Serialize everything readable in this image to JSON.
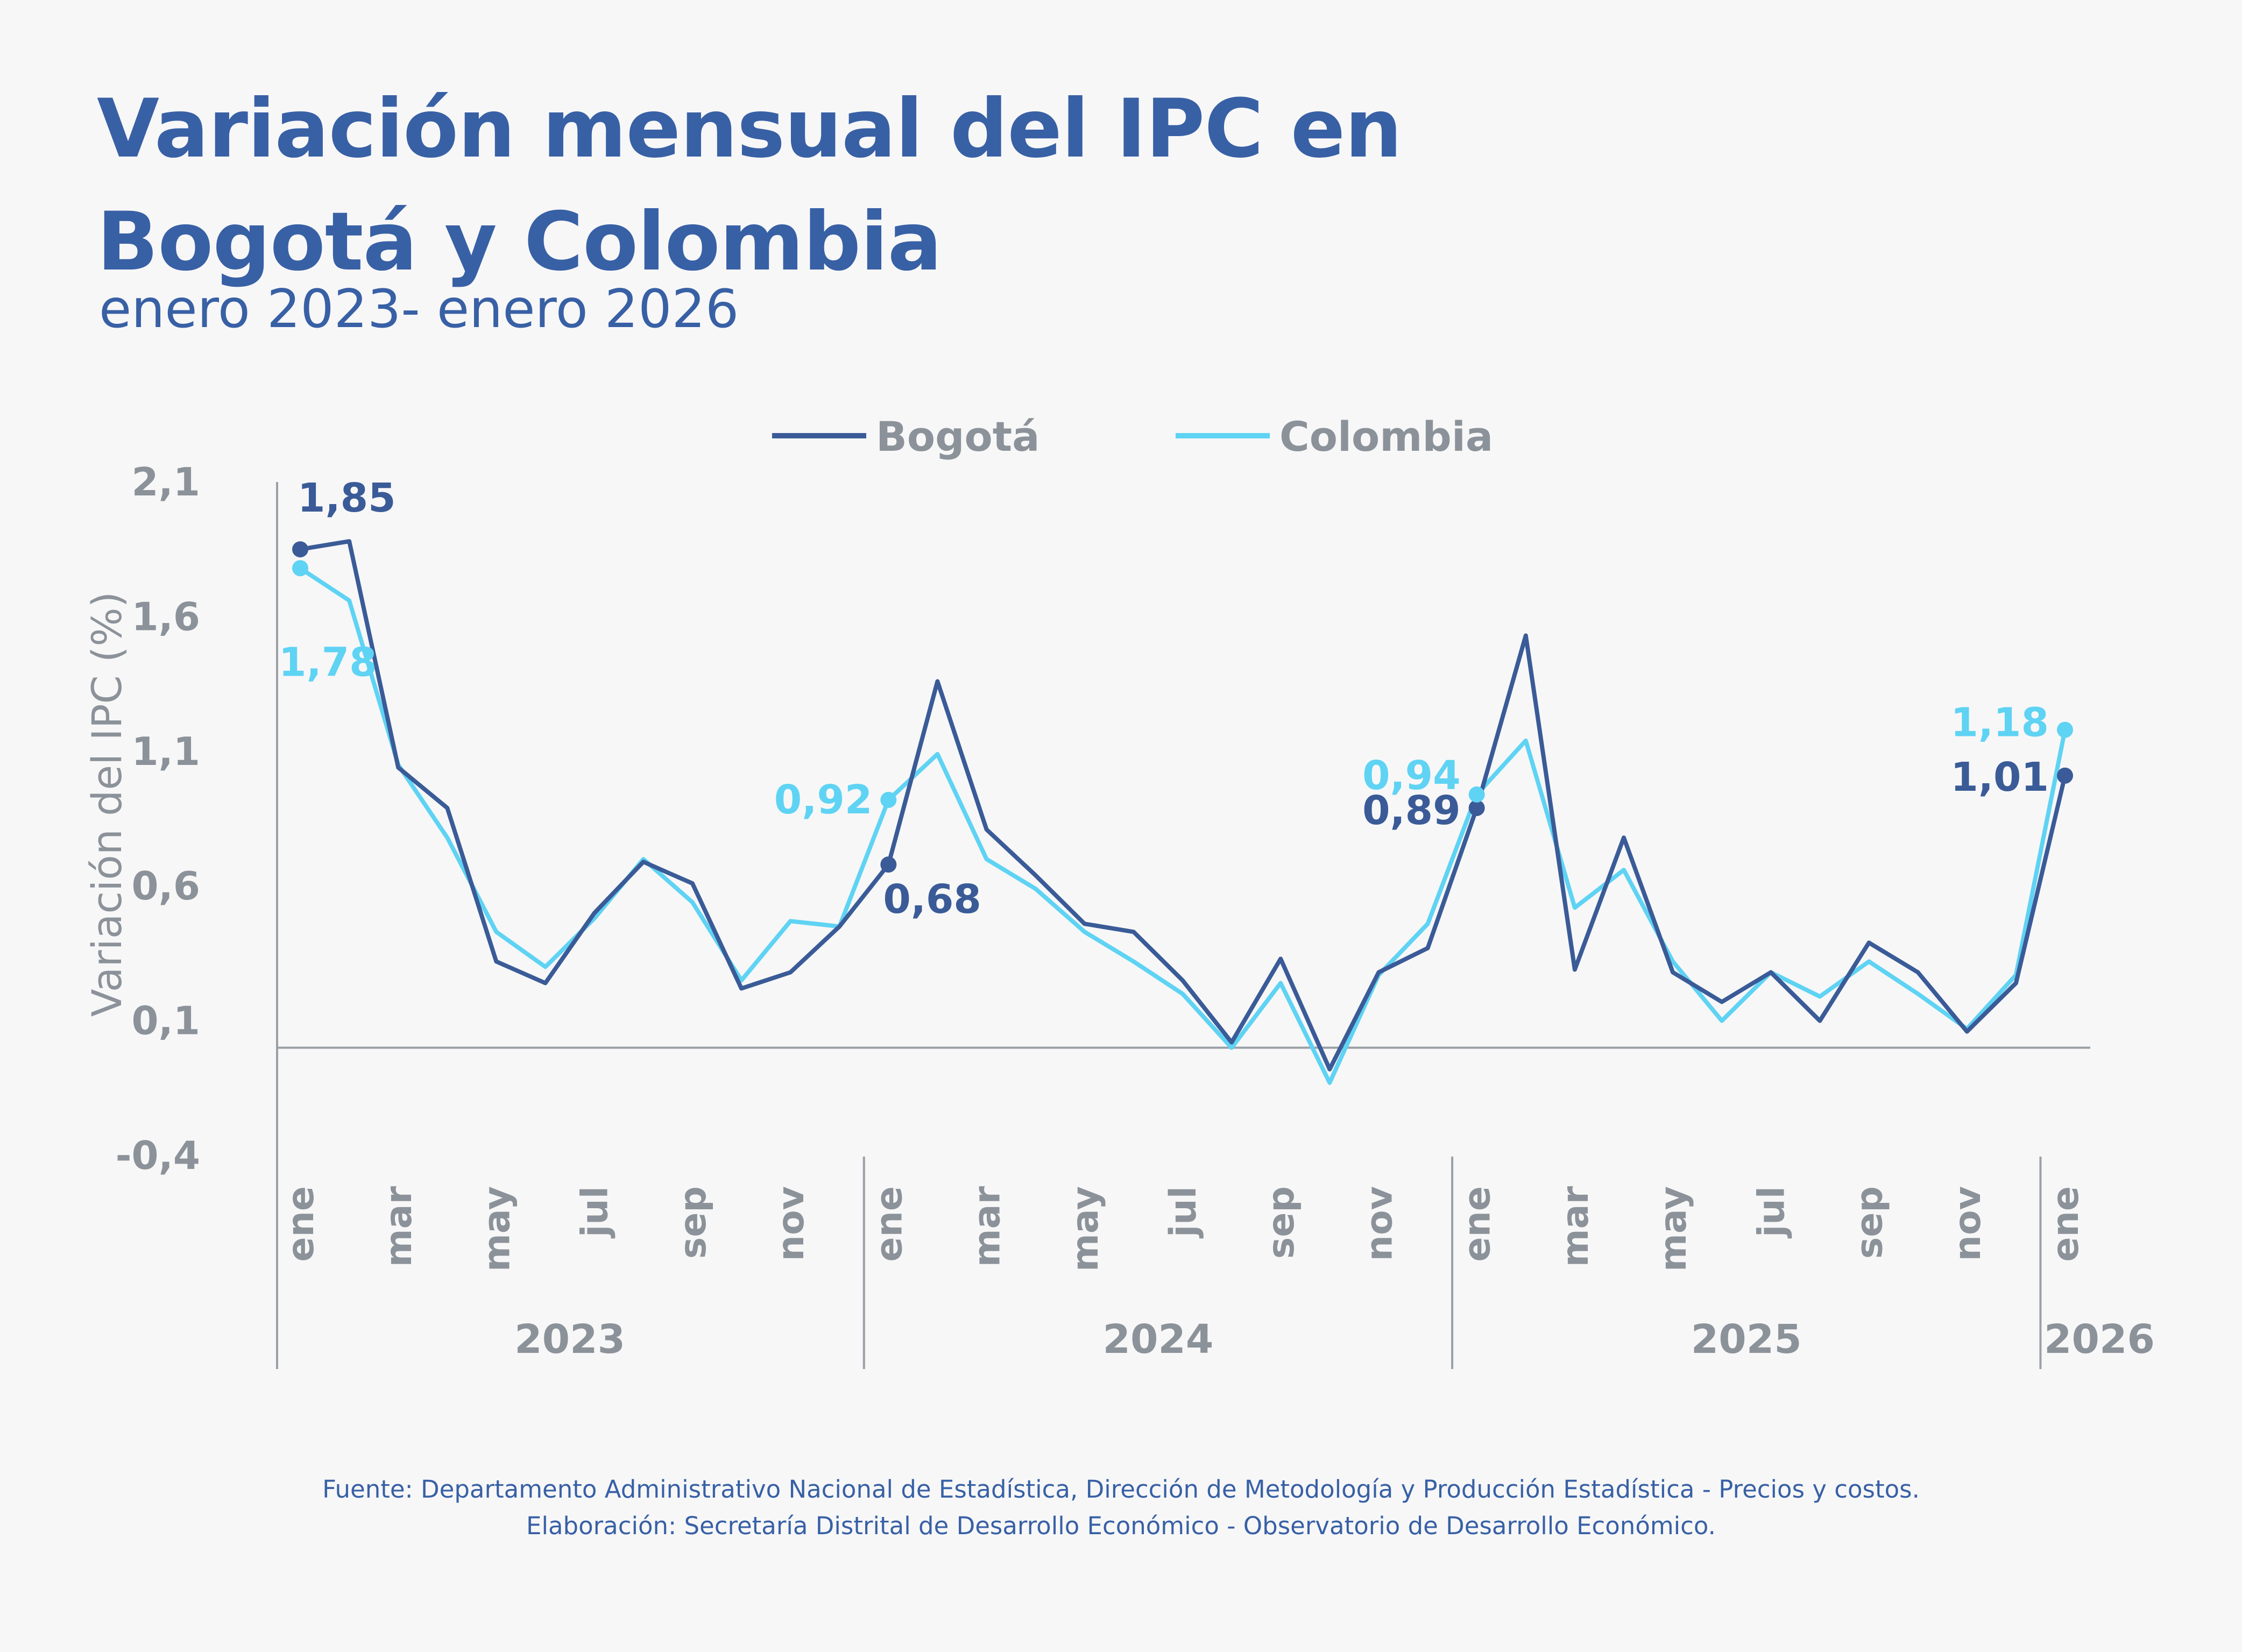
{
  "header": {
    "title_line1": "Variación mensual del IPC en",
    "title_line2": "Bogotá y Colombia",
    "subtitle": "enero 2023- enero 2026"
  },
  "footer": {
    "source": "Fuente: Departamento Administrativo Nacional de Estadística, Dirección de Metodología y Producción Estadística - Precios y costos.",
    "credits": "Elaboración: Secretaría Distrital de Desarrollo Económico - Observatorio de Desarrollo Económico."
  },
  "colors": {
    "bogota": "#3a5b97",
    "colombia": "#5fd3f3",
    "title": "#3860a5",
    "axis_text": "#8c9299",
    "axis_line": "#9aa0a6"
  },
  "chart_data": {
    "type": "line",
    "ylabel": "Variación del IPC (%)",
    "ylim": [
      -0.4,
      2.1
    ],
    "yticks": [
      "2,1",
      "1,6",
      "1,1",
      "0,6",
      "0,1",
      "-0,4"
    ],
    "x": [
      "ene 2023",
      "feb 2023",
      "mar 2023",
      "abr 2023",
      "may 2023",
      "jun 2023",
      "jul 2023",
      "ago 2023",
      "sep 2023",
      "oct 2023",
      "nov 2023",
      "dic 2023",
      "ene 2024",
      "feb 2024",
      "mar 2024",
      "abr 2024",
      "may 2024",
      "jun 2024",
      "jul 2024",
      "ago 2024",
      "sep 2024",
      "oct 2024",
      "nov 2024",
      "dic 2024",
      "ene 2025",
      "feb 2025",
      "mar 2025",
      "abr 2025",
      "may 2025",
      "jun 2025",
      "jul 2025",
      "ago 2025",
      "sep 2025",
      "oct 2025",
      "nov 2025",
      "dic 2025",
      "ene 2026"
    ],
    "month_labels": [
      "ene",
      "mar",
      "may",
      "jul",
      "sep",
      "nov",
      "ene",
      "mar",
      "may",
      "jul",
      "sep",
      "nov",
      "ene",
      "mar",
      "may",
      "jul",
      "sep",
      "nov",
      "ene"
    ],
    "month_label_indices": [
      0,
      2,
      4,
      6,
      8,
      10,
      12,
      14,
      16,
      18,
      20,
      22,
      24,
      26,
      28,
      30,
      32,
      34,
      36
    ],
    "years": [
      {
        "label": "2023",
        "start": 0,
        "end": 11
      },
      {
        "label": "2024",
        "start": 12,
        "end": 23
      },
      {
        "label": "2025",
        "start": 24,
        "end": 35
      },
      {
        "label": "2026",
        "start": 36,
        "end": 36
      }
    ],
    "zero_line": 0,
    "legend_position": "top-center",
    "series": [
      {
        "name": "Bogotá",
        "values": [
          1.85,
          1.88,
          1.04,
          0.89,
          0.32,
          0.24,
          0.5,
          0.69,
          0.61,
          0.22,
          0.28,
          0.45,
          0.68,
          1.36,
          0.81,
          0.64,
          0.46,
          0.43,
          0.25,
          0.02,
          0.33,
          -0.08,
          0.28,
          0.37,
          0.89,
          1.53,
          0.29,
          0.78,
          0.28,
          0.17,
          0.28,
          0.1,
          0.39,
          0.28,
          0.06,
          0.24,
          1.01
        ],
        "labels": [
          {
            "index": 0,
            "text": "1,85"
          },
          {
            "index": 12,
            "text": "0,68"
          },
          {
            "index": 24,
            "text": "0,89"
          },
          {
            "index": 36,
            "text": "1,01"
          }
        ]
      },
      {
        "name": "Colombia",
        "values": [
          1.78,
          1.66,
          1.05,
          0.78,
          0.43,
          0.3,
          0.48,
          0.7,
          0.54,
          0.25,
          0.47,
          0.45,
          0.92,
          1.09,
          0.7,
          0.59,
          0.43,
          0.32,
          0.2,
          0.0,
          0.24,
          -0.13,
          0.27,
          0.46,
          0.94,
          1.14,
          0.52,
          0.66,
          0.32,
          0.1,
          0.28,
          0.19,
          0.32,
          0.2,
          0.07,
          0.27,
          1.18
        ],
        "labels": [
          {
            "index": 0,
            "text": "1,78"
          },
          {
            "index": 12,
            "text": "0,92"
          },
          {
            "index": 24,
            "text": "0,94"
          },
          {
            "index": 36,
            "text": "1,18"
          }
        ]
      }
    ]
  }
}
